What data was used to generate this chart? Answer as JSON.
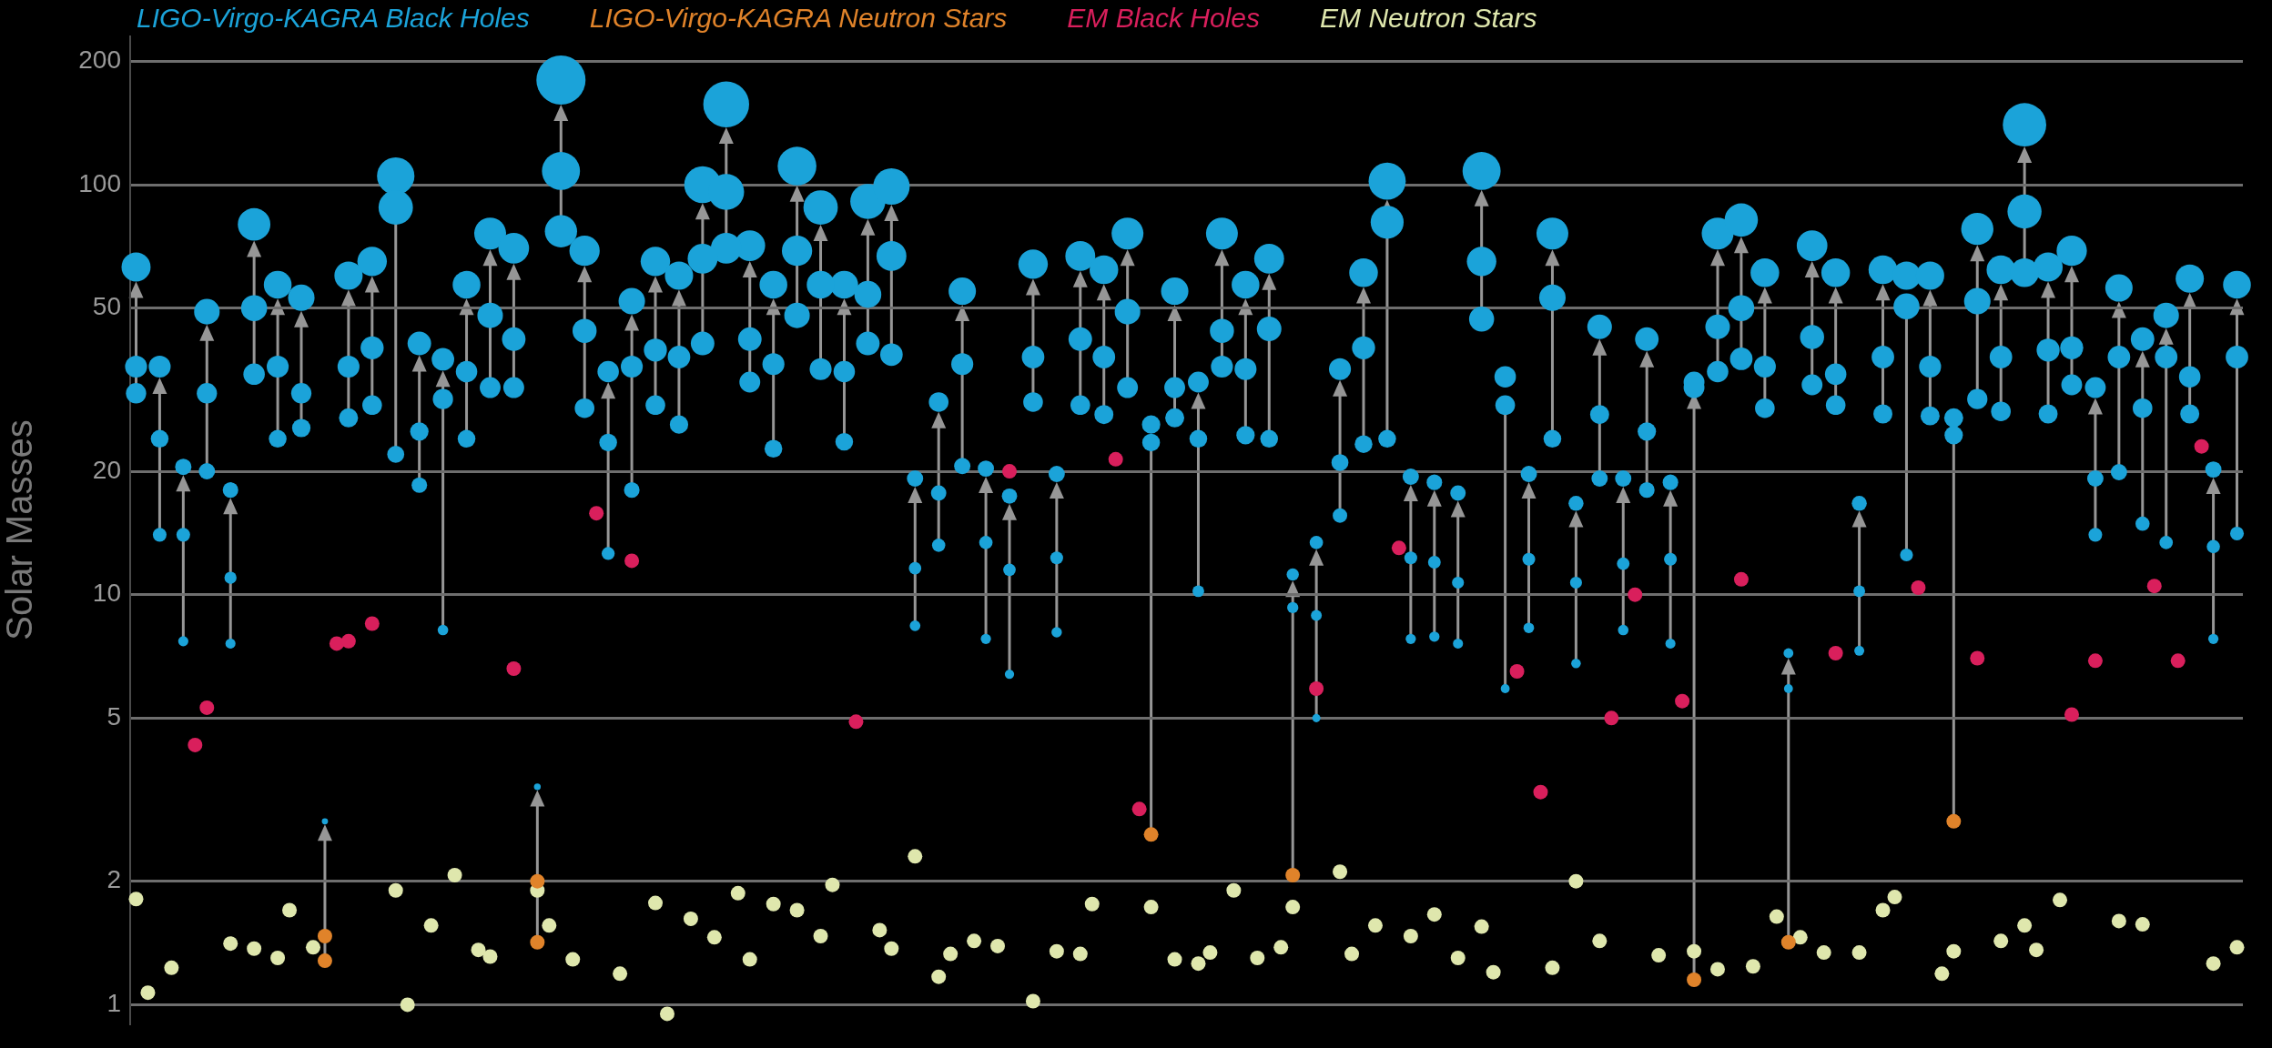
{
  "chart_data": {
    "type": "bubble",
    "ylabel": "Solar Masses",
    "log": true,
    "grid": "y",
    "tick_labels": "y",
    "legend": "top",
    "marker": "circle",
    "ylim": [
      0.9,
      230
    ],
    "yticks": [
      1,
      2,
      5,
      10,
      20,
      50,
      100,
      200
    ],
    "categories": [
      null,
      null,
      null,
      null,
      null,
      null,
      null,
      null,
      null,
      null,
      null,
      null,
      null,
      null,
      null,
      null,
      null,
      null,
      null,
      null,
      null,
      null,
      null,
      null,
      null,
      null,
      null,
      null,
      null,
      null,
      null,
      null,
      null,
      null,
      null,
      null,
      null,
      null,
      null,
      null,
      null,
      null,
      null,
      null,
      null,
      null,
      null,
      null,
      null,
      null,
      null,
      null,
      null,
      null,
      null,
      null,
      null,
      null,
      null,
      null,
      null,
      null,
      null,
      null,
      null,
      null,
      null,
      null,
      null,
      null,
      null,
      null,
      null,
      null,
      null,
      null,
      null,
      null,
      null,
      null,
      null,
      null,
      null,
      null,
      null,
      null,
      null,
      null,
      null,
      null,
      null,
      null,
      null,
      null,
      null,
      null,
      null,
      null,
      null,
      null,
      null,
      null,
      null,
      null,
      null,
      null,
      null,
      null,
      null,
      null,
      null,
      null,
      null,
      null,
      null,
      null,
      null,
      null,
      null,
      null,
      null,
      null,
      null,
      null,
      null,
      null,
      null,
      null,
      null,
      null,
      null,
      null,
      null,
      null,
      null,
      null,
      null,
      null,
      null,
      null,
      null,
      null,
      null,
      null,
      null,
      null,
      null,
      null,
      null,
      null,
      null,
      null,
      null,
      null,
      null,
      null,
      null,
      null,
      null,
      null,
      null,
      null,
      null,
      null,
      null,
      null,
      null,
      null,
      null,
      null,
      null,
      null,
      null,
      null,
      null,
      null,
      null,
      null,
      null
    ],
    "series": [
      {
        "name": "LIGO-Virgo-KAGRA Black Holes",
        "color": "#1ba3d9",
        "type": "bubble",
        "values": [
          36,
          null,
          24,
          null,
          14,
          null,
          31,
          null,
          11,
          null,
          50,
          null,
          36,
          null,
          31,
          null,
          null,
          null,
          36,
          null,
          40,
          null,
          88,
          null,
          25,
          null,
          30,
          null,
          35,
          null,
          48,
          null,
          42,
          null,
          null,
          null,
          108,
          null,
          44,
          null,
          23.5,
          null,
          36,
          null,
          39.5,
          null,
          38,
          null,
          66,
          null,
          96,
          null,
          42,
          null,
          36.5,
          null,
          69,
          null,
          57,
          null,
          35,
          null,
          54,
          null,
          67,
          null,
          11.6,
          null,
          17.7,
          null,
          36.5,
          null,
          13.4,
          null,
          11.5,
          null,
          38,
          null,
          12.3,
          null,
          42,
          null,
          38,
          null,
          49,
          null,
          23.5,
          null,
          32,
          null,
          24,
          null,
          44,
          null,
          35.5,
          null,
          44.5,
          null,
          9.3,
          null,
          8.9,
          null,
          21,
          null,
          40,
          null,
          81,
          null,
          12.3,
          null,
          12,
          null,
          10.7,
          null,
          65,
          null,
          29,
          null,
          12.2,
          null,
          53,
          null,
          10.7,
          null,
          27.5,
          null,
          11.9,
          null,
          25,
          null,
          12.2,
          null,
          32,
          null,
          45,
          null,
          50,
          null,
          36,
          null,
          5.9,
          null,
          42.5,
          null,
          34.5,
          null,
          10.2,
          null,
          38,
          null,
          50.5,
          null,
          36,
          null,
          24.5,
          null,
          52,
          null,
          38,
          null,
          86,
          null,
          39.5,
          null,
          40,
          null,
          19.2,
          null,
          38,
          null,
          28.5,
          null,
          38,
          null,
          34,
          null,
          13.1,
          null,
          38
        ],
        "sizes": [
          0.2,
          null,
          0.13,
          null,
          0.078,
          null,
          0.17,
          null,
          0.061,
          null,
          0.28,
          null,
          0.2,
          null,
          0.17,
          null,
          null,
          null,
          0.2,
          null,
          0.22,
          null,
          0.49,
          null,
          0.14,
          null,
          0.17,
          null,
          0.19,
          null,
          0.27,
          null,
          0.23,
          null,
          null,
          null,
          0.6,
          null,
          0.24,
          null,
          0.13,
          null,
          0.2,
          null,
          0.22,
          null,
          0.21,
          null,
          0.37,
          null,
          0.53,
          null,
          0.23,
          null,
          0.2,
          null,
          0.38,
          null,
          0.32,
          null,
          0.19,
          null,
          0.3,
          null,
          0.37,
          null,
          0.064,
          null,
          0.098,
          null,
          0.2,
          null,
          0.074,
          null,
          0.064,
          null,
          0.21,
          null,
          0.068,
          null,
          0.23,
          null,
          0.21,
          null,
          0.27,
          null,
          0.13,
          null,
          0.18,
          null,
          0.13,
          null,
          0.24,
          null,
          0.2,
          null,
          0.25,
          null,
          0.052,
          null,
          0.049,
          null,
          0.12,
          null,
          0.22,
          null,
          0.45,
          null,
          0.068,
          null,
          0.067,
          null,
          0.059,
          null,
          0.36,
          null,
          0.16,
          null,
          0.068,
          null,
          0.29,
          null,
          0.059,
          null,
          0.15,
          null,
          0.066,
          null,
          0.14,
          null,
          0.068,
          null,
          0.18,
          null,
          0.25,
          null,
          0.28,
          null,
          0.2,
          null,
          0.033,
          null,
          0.24,
          null,
          0.19,
          null,
          0.057,
          null,
          0.21,
          null,
          0.28,
          null,
          0.2,
          null,
          0.14,
          null,
          0.29,
          null,
          0.21,
          null,
          0.48,
          null,
          0.22,
          null,
          0.22,
          null,
          0.11,
          null,
          0.21,
          null,
          0.16,
          null,
          0.21,
          null,
          0.19,
          null,
          0.073,
          null,
          0.21
        ]
      },
      {
        "color": "#1ba3d9",
        "type": "bubble",
        "values": [
          31,
          null,
          14,
          null,
          7.7,
          null,
          20,
          null,
          7.6,
          null,
          34.5,
          null,
          24,
          null,
          25.5,
          null,
          null,
          null,
          27,
          null,
          29,
          null,
          22,
          null,
          18.5,
          null,
          8.2,
          null,
          24,
          null,
          32,
          null,
          32,
          null,
          null,
          null,
          77,
          null,
          28.5,
          null,
          12.6,
          null,
          18,
          null,
          29,
          null,
          26,
          null,
          41,
          null,
          70,
          null,
          33,
          null,
          22.7,
          null,
          48,
          null,
          35.5,
          null,
          23.6,
          null,
          41,
          null,
          38.5,
          null,
          8.4,
          null,
          13.2,
          null,
          20.6,
          null,
          7.8,
          null,
          6.4,
          null,
          29.5,
          null,
          8.1,
          null,
          29,
          null,
          27.5,
          null,
          32,
          null,
          null,
          null,
          27,
          null,
          10.2,
          null,
          36,
          null,
          24.5,
          null,
          24,
          null,
          null,
          null,
          5.0,
          null,
          15.6,
          null,
          23.3,
          null,
          24,
          null,
          7.8,
          null,
          7.9,
          null,
          7.6,
          null,
          47,
          null,
          5.9,
          null,
          8.3,
          null,
          24,
          null,
          6.8,
          null,
          19.2,
          null,
          8.2,
          null,
          18,
          null,
          7.6,
          null,
          null,
          null,
          35,
          null,
          37.6,
          null,
          28.5,
          null,
          null,
          null,
          32.5,
          null,
          29,
          null,
          7.3,
          null,
          27.6,
          null,
          12.5,
          null,
          27.3,
          null,
          null,
          null,
          30,
          null,
          28,
          null,
          61,
          null,
          27.6,
          null,
          32.5,
          null,
          14,
          null,
          19.9,
          null,
          14.9,
          null,
          13.4,
          null,
          27.6,
          null,
          7.8,
          null,
          14.1
        ],
        "sizes": [
          0.17,
          null,
          0.078,
          null,
          0.043,
          null,
          0.11,
          null,
          0.042,
          null,
          0.19,
          null,
          0.13,
          null,
          0.14,
          null,
          null,
          null,
          0.15,
          null,
          0.16,
          null,
          0.12,
          null,
          0.1,
          null,
          0.046,
          null,
          0.13,
          null,
          0.18,
          null,
          0.18,
          null,
          null,
          null,
          0.43,
          null,
          0.16,
          null,
          0.07,
          null,
          0.1,
          null,
          0.16,
          null,
          0.14,
          null,
          0.23,
          null,
          0.39,
          null,
          0.18,
          null,
          0.13,
          null,
          0.27,
          null,
          0.2,
          null,
          0.13,
          null,
          0.23,
          null,
          0.21,
          null,
          0.047,
          null,
          0.073,
          null,
          0.11,
          null,
          0.043,
          null,
          0.036,
          null,
          0.16,
          null,
          0.045,
          null,
          0.16,
          null,
          0.15,
          null,
          0.18,
          null,
          null,
          null,
          0.15,
          null,
          0.057,
          null,
          0.2,
          null,
          0.14,
          null,
          0.13,
          null,
          null,
          null,
          0.028,
          null,
          0.087,
          null,
          0.13,
          null,
          0.13,
          null,
          0.043,
          null,
          0.044,
          null,
          0.042,
          null,
          0.26,
          null,
          0.033,
          null,
          0.046,
          null,
          0.13,
          null,
          0.038,
          null,
          0.11,
          null,
          0.046,
          null,
          0.1,
          null,
          0.042,
          null,
          null,
          null,
          0.19,
          null,
          0.21,
          null,
          0.16,
          null,
          null,
          null,
          0.18,
          null,
          0.16,
          null,
          0.041,
          null,
          0.15,
          null,
          0.069,
          null,
          0.15,
          null,
          null,
          null,
          0.17,
          null,
          0.16,
          null,
          0.34,
          null,
          0.15,
          null,
          0.18,
          null,
          0.078,
          null,
          0.11,
          null,
          0.083,
          null,
          0.074,
          null,
          0.15,
          null,
          0.043,
          null,
          0.078
        ]
      },
      {
        "color": "#1ba3d9",
        "type": "bubble",
        "values": [
          63,
          null,
          36,
          null,
          20.5,
          null,
          49,
          null,
          18,
          null,
          80,
          null,
          57,
          null,
          53,
          null,
          2.8,
          null,
          60,
          null,
          65,
          null,
          105,
          null,
          41,
          null,
          37.5,
          null,
          57,
          null,
          76,
          null,
          70,
          null,
          3.4,
          null,
          180,
          null,
          69,
          null,
          35,
          null,
          52,
          null,
          65,
          null,
          60,
          null,
          100,
          null,
          157,
          null,
          71,
          null,
          57,
          null,
          111,
          null,
          88,
          null,
          57,
          null,
          91,
          null,
          99,
          null,
          19.2,
          null,
          29.5,
          null,
          55,
          null,
          20.3,
          null,
          17.4,
          null,
          64,
          null,
          19.7,
          null,
          67,
          null,
          62,
          null,
          76,
          null,
          26,
          null,
          55,
          null,
          33,
          null,
          76,
          null,
          57,
          null,
          66,
          null,
          11.2,
          null,
          13.4,
          null,
          35.5,
          null,
          61,
          null,
          102,
          null,
          19.4,
          null,
          18.8,
          null,
          17.7,
          null,
          108,
          null,
          34,
          null,
          19.7,
          null,
          76,
          null,
          16.7,
          null,
          45,
          null,
          19.2,
          null,
          42,
          null,
          18.8,
          null,
          33,
          null,
          76,
          null,
          82,
          null,
          61,
          null,
          7.2,
          null,
          71,
          null,
          61,
          null,
          16.7,
          null,
          62,
          null,
          60,
          null,
          60,
          null,
          27,
          null,
          78,
          null,
          62,
          null,
          140,
          null,
          63,
          null,
          69,
          null,
          32,
          null,
          56,
          null,
          42,
          null,
          48,
          null,
          59,
          null,
          20.2,
          null,
          57
        ],
        "sizes": [
          0.35,
          null,
          0.2,
          null,
          0.11,
          null,
          0.27,
          null,
          0.1,
          null,
          0.44,
          null,
          0.32,
          null,
          0.29,
          null,
          0.016,
          null,
          0.33,
          null,
          0.36,
          null,
          0.58,
          null,
          0.23,
          null,
          0.21,
          null,
          0.32,
          null,
          0.42,
          null,
          0.39,
          null,
          0.019,
          null,
          1,
          null,
          0.38,
          null,
          0.19,
          null,
          0.29,
          null,
          0.36,
          null,
          0.33,
          null,
          0.56,
          null,
          0.87,
          null,
          0.39,
          null,
          0.32,
          null,
          0.62,
          null,
          0.49,
          null,
          0.32,
          null,
          0.51,
          null,
          0.55,
          null,
          0.11,
          null,
          0.16,
          null,
          0.31,
          null,
          0.11,
          null,
          0.097,
          null,
          0.36,
          null,
          0.11,
          null,
          0.37,
          null,
          0.34,
          null,
          0.42,
          null,
          0.14,
          null,
          0.31,
          null,
          0.18,
          null,
          0.42,
          null,
          0.32,
          null,
          0.37,
          null,
          0.062,
          null,
          0.074,
          null,
          0.2,
          null,
          0.34,
          null,
          0.57,
          null,
          0.11,
          null,
          0.1,
          null,
          0.098,
          null,
          0.6,
          null,
          0.19,
          null,
          0.11,
          null,
          0.42,
          null,
          0.093,
          null,
          0.25,
          null,
          0.11,
          null,
          0.23,
          null,
          0.1,
          null,
          0.18,
          null,
          0.42,
          null,
          0.46,
          null,
          0.34,
          null,
          0.04,
          null,
          0.39,
          null,
          0.34,
          null,
          0.093,
          null,
          0.34,
          null,
          0.33,
          null,
          0.33,
          null,
          0.15,
          null,
          0.43,
          null,
          0.34,
          null,
          0.78,
          null,
          0.35,
          null,
          0.38,
          null,
          0.18,
          null,
          0.31,
          null,
          0.23,
          null,
          0.27,
          null,
          0.33,
          null,
          0.11,
          null,
          0.32
        ]
      },
      {
        "name": "LIGO-Virgo-KAGRA Neutron Stars",
        "color": "#e0832a",
        "type": "scatter",
        "values": [
          null,
          null,
          null,
          null,
          null,
          null,
          null,
          null,
          null,
          null,
          null,
          null,
          null,
          null,
          null,
          null,
          1.47,
          null,
          null,
          null,
          null,
          null,
          null,
          null,
          null,
          null,
          null,
          null,
          null,
          null,
          null,
          null,
          null,
          null,
          2.0,
          null,
          null,
          null,
          null,
          null,
          null,
          null,
          null,
          null,
          null,
          null,
          null,
          null,
          null,
          null,
          null,
          null,
          null,
          null,
          null,
          null,
          null,
          null,
          null,
          null,
          null,
          null,
          null,
          null,
          null,
          null,
          null,
          null,
          null,
          null,
          null,
          null,
          null,
          null,
          null,
          null,
          null,
          null,
          null,
          null,
          null,
          null,
          null,
          null,
          null,
          null,
          2.6,
          null,
          null,
          null,
          null,
          null,
          null,
          null,
          null,
          null,
          null,
          null,
          2.07,
          null,
          null,
          null,
          null,
          null,
          null,
          null,
          null,
          null,
          null,
          null,
          null,
          null,
          null,
          null,
          null,
          null,
          null,
          null,
          null,
          null,
          null,
          null,
          null,
          null,
          null,
          null,
          null,
          null,
          null,
          null,
          null,
          null,
          1.15,
          null,
          null,
          null,
          null,
          null,
          null,
          null,
          1.42,
          null,
          null,
          null,
          null,
          null,
          null,
          null,
          null,
          null,
          null,
          null,
          null,
          null,
          2.8,
          null,
          null,
          null,
          null,
          null,
          null,
          null,
          null,
          null,
          null,
          null,
          null,
          null,
          null,
          null,
          null,
          null,
          null,
          null,
          null,
          null,
          null,
          null,
          null
        ]
      },
      {
        "color": "#e0832a",
        "type": "scatter",
        "values": [
          null,
          null,
          null,
          null,
          null,
          null,
          null,
          null,
          null,
          null,
          null,
          null,
          null,
          null,
          null,
          null,
          1.28,
          null,
          null,
          null,
          null,
          null,
          null,
          null,
          null,
          null,
          null,
          null,
          null,
          null,
          null,
          null,
          null,
          null,
          1.42,
          null,
          null,
          null,
          null,
          null,
          null,
          null,
          null,
          null,
          null,
          null,
          null,
          null,
          null,
          null,
          null,
          null,
          null,
          null,
          null,
          null,
          null,
          null,
          null,
          null,
          null,
          null,
          null,
          null,
          null,
          null,
          null,
          null,
          null,
          null,
          null,
          null,
          null,
          null,
          null,
          null,
          null,
          null,
          null,
          null,
          null,
          null,
          null,
          null,
          null,
          null,
          null,
          null,
          null,
          null,
          null,
          null,
          null,
          null,
          null,
          null,
          null,
          null,
          null,
          null,
          null,
          null,
          null,
          null,
          null,
          null,
          null,
          null,
          null,
          null,
          null,
          null,
          null,
          null,
          null,
          null,
          null,
          null,
          null,
          null,
          null,
          null,
          null,
          null,
          null,
          null,
          null,
          null,
          null,
          null,
          null,
          null,
          null,
          null,
          null,
          null,
          null,
          null,
          null,
          null,
          null,
          null,
          null,
          null,
          null,
          null,
          null,
          null,
          null,
          null,
          null,
          null,
          null,
          null,
          null,
          null,
          null,
          null,
          null,
          null,
          null,
          null,
          null,
          null,
          null,
          null,
          null,
          null,
          null,
          null,
          null,
          null,
          null,
          null,
          null,
          null,
          null,
          null,
          null
        ]
      },
      {
        "name": "EM Black Holes",
        "color": "#d91f5c",
        "type": "scatter",
        "values": [
          null,
          null,
          null,
          null,
          null,
          4.3,
          5.3,
          null,
          null,
          null,
          null,
          null,
          null,
          null,
          null,
          null,
          null,
          7.6,
          7.7,
          null,
          8.5,
          null,
          null,
          null,
          null,
          null,
          null,
          null,
          null,
          null,
          null,
          null,
          6.6,
          null,
          null,
          null,
          null,
          null,
          null,
          15.8,
          null,
          null,
          12.1,
          null,
          null,
          null,
          null,
          null,
          null,
          null,
          null,
          null,
          null,
          null,
          null,
          null,
          null,
          null,
          null,
          null,
          null,
          4.9,
          null,
          null,
          null,
          null,
          null,
          null,
          null,
          null,
          null,
          null,
          null,
          null,
          20,
          null,
          null,
          null,
          null,
          null,
          null,
          null,
          null,
          21.4,
          null,
          3.0,
          null,
          null,
          null,
          null,
          null,
          null,
          null,
          null,
          null,
          null,
          null,
          null,
          null,
          null,
          5.9,
          null,
          null,
          null,
          null,
          null,
          null,
          13,
          null,
          null,
          null,
          null,
          null,
          null,
          null,
          null,
          null,
          6.5,
          null,
          3.3,
          null,
          null,
          null,
          null,
          null,
          5.0,
          null,
          10,
          null,
          null,
          null,
          5.5,
          null,
          null,
          null,
          null,
          10.9,
          null,
          null,
          null,
          null,
          null,
          null,
          null,
          7.2,
          null,
          null,
          null,
          null,
          null,
          null,
          10.4,
          null,
          null,
          null,
          null,
          7.0,
          null,
          null,
          null,
          null,
          null,
          null,
          null,
          5.1,
          null,
          6.9,
          null,
          null,
          null,
          null,
          10.5,
          null,
          6.9,
          null,
          23,
          null,
          null,
          null
        ]
      },
      {
        "name": "EM Neutron Stars",
        "color": "#dfe7ad",
        "type": "scatter",
        "values": [
          1.81,
          1.07,
          null,
          1.23,
          null,
          null,
          null,
          null,
          1.41,
          null,
          1.37,
          null,
          1.3,
          1.7,
          null,
          1.38,
          null,
          null,
          null,
          null,
          null,
          null,
          1.9,
          1.0,
          null,
          1.56,
          null,
          2.07,
          null,
          1.36,
          1.31,
          null,
          null,
          null,
          1.9,
          1.56,
          null,
          1.29,
          null,
          null,
          null,
          1.19,
          null,
          null,
          1.77,
          0.95,
          null,
          1.62,
          null,
          1.46,
          null,
          1.87,
          1.29,
          null,
          1.76,
          null,
          1.7,
          null,
          1.47,
          1.96,
          null,
          null,
          null,
          1.52,
          1.37,
          null,
          2.3,
          null,
          1.17,
          1.33,
          null,
          1.43,
          null,
          1.39,
          null,
          null,
          1.02,
          null,
          1.35,
          null,
          1.33,
          1.76,
          null,
          null,
          null,
          null,
          1.73,
          null,
          1.29,
          null,
          1.26,
          1.34,
          null,
          1.9,
          null,
          1.3,
          null,
          1.38,
          1.73,
          null,
          null,
          null,
          2.11,
          1.33,
          null,
          1.56,
          null,
          null,
          1.47,
          null,
          1.66,
          null,
          1.3,
          null,
          1.55,
          1.2,
          null,
          null,
          null,
          null,
          1.23,
          null,
          2.0,
          null,
          1.43,
          null,
          null,
          null,
          null,
          1.32,
          null,
          null,
          1.35,
          null,
          1.22,
          null,
          null,
          1.24,
          null,
          1.64,
          null,
          1.46,
          null,
          1.34,
          null,
          null,
          1.34,
          null,
          1.7,
          1.83,
          null,
          null,
          null,
          1.19,
          1.35,
          null,
          null,
          null,
          1.43,
          null,
          1.56,
          1.36,
          null,
          1.8,
          null,
          null,
          null,
          null,
          1.6,
          null,
          1.57,
          null,
          null,
          null,
          null,
          null,
          1.26,
          null,
          1.38
        ]
      }
    ]
  }
}
